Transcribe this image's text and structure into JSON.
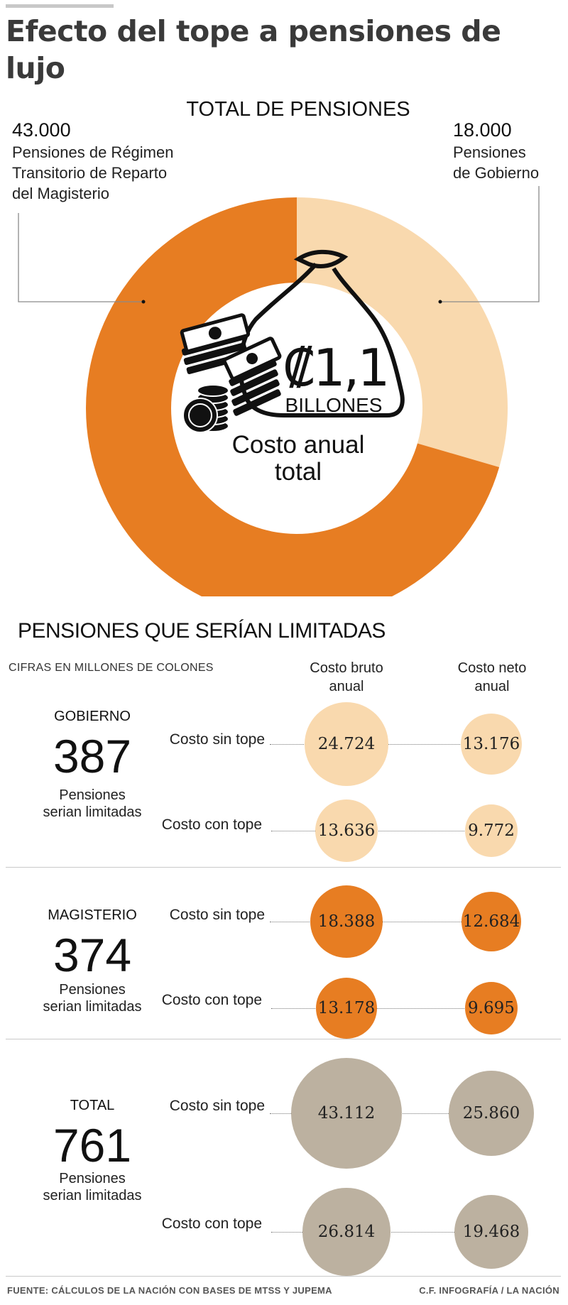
{
  "title": "Efecto del tope a pensiones de lujo",
  "donut": {
    "title": "TOTAL DE PENSIONES",
    "left": {
      "value": "43.000",
      "label_lines": [
        "Pensiones de Régimen",
        "Transitorio de Reparto",
        "del Magisterio"
      ]
    },
    "right": {
      "value": "18.000",
      "label_lines": [
        "Pensiones",
        "de Gobierno"
      ]
    },
    "center_amount": "₡1,1",
    "center_unit": "BILLONES",
    "center_caption_lines": [
      "Costo anual",
      "total"
    ],
    "colors": {
      "magisterio": "#E77D22",
      "gobierno": "#F9D9AE",
      "total": "#BCB1A0"
    }
  },
  "chart_data": {
    "type": "pie",
    "title": "TOTAL DE PENSIONES",
    "categories": [
      "Pensiones de Gobierno",
      "Pensiones de Régimen Transitorio de Reparto del Magisterio"
    ],
    "values": [
      18000,
      43000
    ]
  },
  "table": {
    "title": "PENSIONES QUE SERÍAN LIMITADAS",
    "subtitle": "CIFRAS EN MILLONES DE COLONES",
    "col_bruto_lines": [
      "Costo bruto",
      "anual"
    ],
    "col_neto_lines": [
      "Costo neto",
      "anual"
    ],
    "row_sin": "Costo sin tope",
    "row_con": "Costo con tope",
    "groups": [
      {
        "name": "GOBIERNO",
        "count": "387",
        "sub_lines": [
          "Pensiones",
          "serian limitadas"
        ],
        "sin": {
          "bruto": "24.724",
          "neto": "13.176"
        },
        "con": {
          "bruto": "13.636",
          "neto": "9.772"
        }
      },
      {
        "name": "MAGISTERIO",
        "count": "374",
        "sub_lines": [
          "Pensiones",
          "serian limitadas"
        ],
        "sin": {
          "bruto": "18.388",
          "neto": "12.684"
        },
        "con": {
          "bruto": "13.178",
          "neto": "9.695"
        }
      },
      {
        "name": "TOTAL",
        "count": "761",
        "sub_lines": [
          "Pensiones",
          "serian limitadas"
        ],
        "sin": {
          "bruto": "43.112",
          "neto": "25.860"
        },
        "con": {
          "bruto": "26.814",
          "neto": "19.468"
        }
      }
    ]
  },
  "footer": {
    "source": "FUENTE: CÁLCULOS DE LA NACIÓN CON BASES DE MTSS Y JUPEMA",
    "credit": "C.F. INFOGRAFÍA / LA NACIÓN"
  }
}
